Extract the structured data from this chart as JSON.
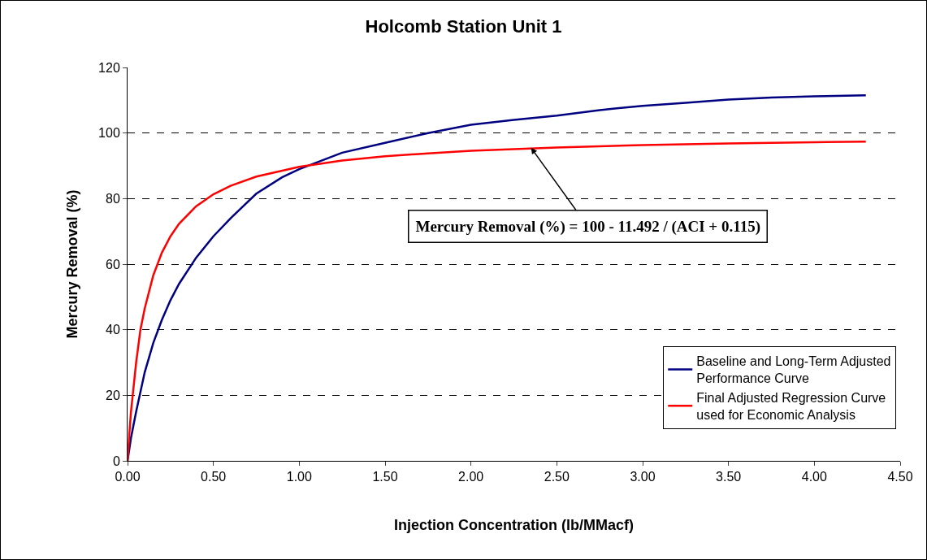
{
  "chart_data": {
    "type": "line",
    "title": "Holcomb Station Unit 1",
    "xlabel": "Injection Concentration (lb/MMacf)",
    "ylabel": "Mercury Removal (%)",
    "xlim": [
      0,
      4.5
    ],
    "xticks": [
      {
        "value": 0,
        "label": "0.00"
      },
      {
        "value": 0.5,
        "label": "0.50"
      },
      {
        "value": 1,
        "label": "1.00"
      },
      {
        "value": 1.5,
        "label": "1.50"
      },
      {
        "value": 2,
        "label": "2.00"
      },
      {
        "value": 2.5,
        "label": "2.50"
      },
      {
        "value": 3,
        "label": "3.00"
      },
      {
        "value": 3.5,
        "label": "3.50"
      },
      {
        "value": 4,
        "label": "4.00"
      },
      {
        "value": 4.5,
        "label": "4.50"
      }
    ],
    "ylim": [
      0,
      120
    ],
    "yticks": [
      0,
      20,
      40,
      60,
      80,
      100,
      120
    ],
    "grid": "y",
    "legend": "bottom right",
    "marker": "none",
    "line_style": "solid",
    "series": [
      {
        "name": "Baseline and Long-Term Adjusted Performance Curve",
        "color": "#000080",
        "x": [
          0,
          0.02,
          0.05,
          0.1,
          0.15,
          0.2,
          0.25,
          0.3,
          0.4,
          0.5,
          0.6,
          0.75,
          0.9,
          1.0,
          1.25,
          1.5,
          1.75,
          2.0,
          2.25,
          2.5,
          2.75,
          3.0,
          3.25,
          3.5,
          3.75,
          4.0,
          4.3
        ],
        "values": [
          0,
          7,
          15,
          27,
          36,
          43,
          49,
          54,
          62,
          68.5,
          74,
          81.5,
          86.5,
          89,
          94,
          97,
          100,
          102.5,
          104,
          105.3,
          107,
          108.3,
          109.2,
          110.2,
          110.8,
          111.2,
          111.5
        ]
      },
      {
        "name": "Final Adjusted Regression Curve used for Economic Analysis",
        "color": "#ff0000",
        "x": [
          0,
          0.01,
          0.02,
          0.03,
          0.05,
          0.075,
          0.1,
          0.15,
          0.2,
          0.25,
          0.3,
          0.4,
          0.5,
          0.6,
          0.75,
          1.0,
          1.25,
          1.5,
          1.75,
          2.0,
          2.5,
          3.0,
          3.5,
          4.0,
          4.3
        ],
        "values": [
          0,
          8,
          15,
          20,
          30,
          40,
          46.5,
          56.6,
          63.5,
          68.5,
          72.3,
          77.7,
          81.3,
          83.9,
          86.7,
          89.7,
          91.6,
          92.9,
          93.8,
          94.6,
          95.6,
          96.3,
          96.8,
          97.2,
          97.4
        ]
      }
    ],
    "annotations": [
      {
        "text": "Mercury Removal (%) = 100 - 11.492 / (ACI + 0.115)",
        "x": 2.35,
        "y": 95.5
      }
    ]
  }
}
